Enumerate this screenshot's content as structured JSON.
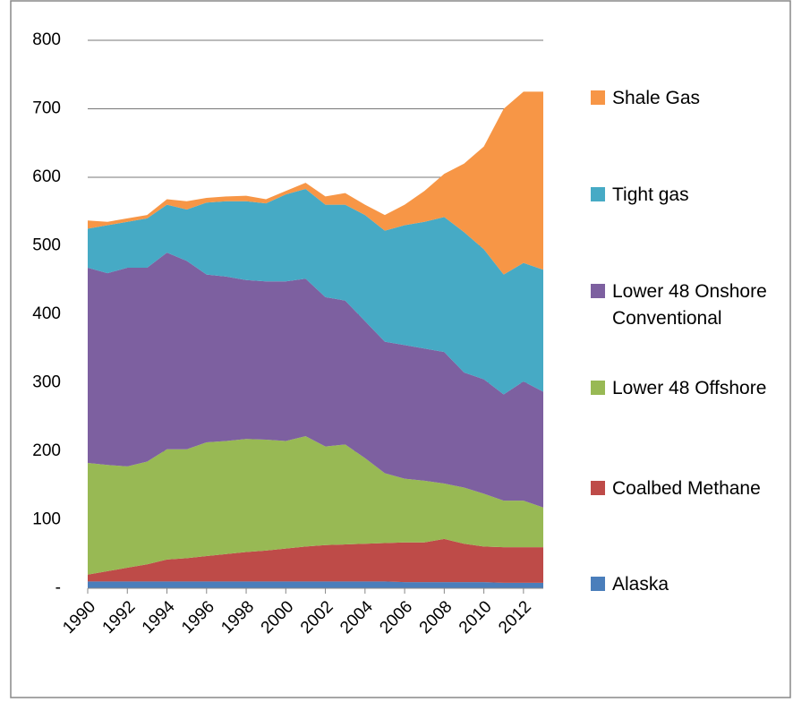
{
  "chart_data": {
    "type": "area",
    "stacked": true,
    "x": [
      1990,
      1991,
      1992,
      1993,
      1994,
      1995,
      1996,
      1997,
      1998,
      1999,
      2000,
      2001,
      2002,
      2003,
      2004,
      2005,
      2006,
      2007,
      2008,
      2009,
      2010,
      2011,
      2012,
      2013
    ],
    "xlim": [
      1990,
      2013
    ],
    "xticks": [
      1990,
      1992,
      1994,
      1996,
      1998,
      2000,
      2002,
      2004,
      2006,
      2008,
      2010,
      2012
    ],
    "ylim": [
      0,
      800
    ],
    "yticks": [
      {
        "value": 0,
        "label": "-"
      },
      100,
      200,
      300,
      400,
      500,
      600,
      700,
      800
    ],
    "grid": true,
    "legend": "right",
    "series": [
      {
        "name": "Alaska",
        "color": "#4a7ebb",
        "values": [
          10,
          10,
          10,
          10,
          10,
          10,
          10,
          10,
          10,
          10,
          10,
          10,
          10,
          10,
          10,
          10,
          9,
          9,
          9,
          9,
          9,
          8,
          8,
          8
        ]
      },
      {
        "name": "Coalbed Methane",
        "color": "#be4b48",
        "values": [
          10,
          15,
          20,
          25,
          32,
          34,
          37,
          40,
          43,
          45,
          48,
          51,
          53,
          54,
          55,
          56,
          58,
          58,
          63,
          56,
          52,
          52,
          52,
          52
        ]
      },
      {
        "name": "Lower 48 Offshore",
        "color": "#98b954",
        "values": [
          163,
          155,
          148,
          150,
          161,
          159,
          166,
          165,
          165,
          162,
          157,
          161,
          144,
          146,
          125,
          102,
          93,
          90,
          81,
          82,
          77,
          68,
          68,
          58
        ]
      },
      {
        "name": "Lower 48 Onshore Conventional",
        "color": "#7d60a0",
        "values": [
          285,
          280,
          290,
          283,
          287,
          275,
          245,
          240,
          232,
          231,
          233,
          230,
          218,
          210,
          200,
          192,
          195,
          193,
          192,
          168,
          167,
          155,
          174,
          169
        ]
      },
      {
        "name": "Tight gas",
        "color": "#46aac5",
        "values": [
          57,
          70,
          67,
          72,
          70,
          75,
          105,
          110,
          115,
          114,
          127,
          131,
          135,
          140,
          155,
          162,
          175,
          185,
          197,
          205,
          190,
          175,
          173,
          178
        ]
      },
      {
        "name": "Shale Gas",
        "color": "#f79646",
        "values": [
          12,
          5,
          5,
          5,
          8,
          12,
          7,
          7,
          8,
          6,
          5,
          9,
          12,
          17,
          15,
          23,
          30,
          45,
          63,
          100,
          150,
          242,
          250,
          260
        ]
      }
    ]
  }
}
